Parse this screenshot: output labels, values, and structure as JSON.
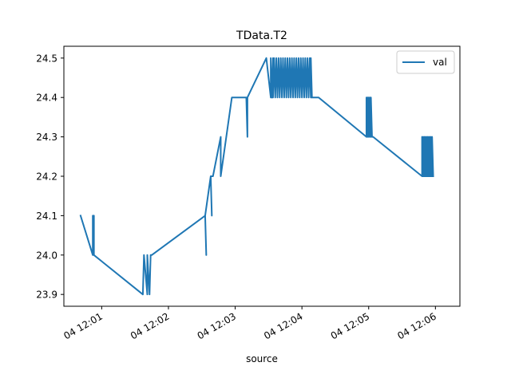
{
  "chart_data": {
    "type": "line",
    "title": "TData.T2",
    "xlabel": "source",
    "ylabel": "",
    "x_type": "time",
    "x_tick_labels": [
      "04 12:01",
      "04 12:02",
      "04 12:03",
      "04 12:04",
      "04 12:05",
      "04 12:06"
    ],
    "y_ticks": [
      23.9,
      24.0,
      24.1,
      24.2,
      24.3,
      24.4,
      24.5
    ],
    "y_tick_labels": [
      "23.9",
      "24.0",
      "24.1",
      "24.2",
      "24.3",
      "24.4",
      "24.5"
    ],
    "xlim": [
      "12:00:26",
      "12:06:22"
    ],
    "ylim": [
      23.87,
      24.53
    ],
    "grid": false,
    "legend": {
      "position": "top-right"
    },
    "series": [
      {
        "name": "val",
        "color": "#1f77b4",
        "x": [
          "12:00:41",
          "12:00:52",
          "12:00:52",
          "12:00:53",
          "12:00:53",
          "12:00:53",
          "12:00:53",
          "12:01:37",
          "12:01:38",
          "12:01:41",
          "12:01:41",
          "12:01:43",
          "12:01:44",
          "12:01:45",
          "12:02:33",
          "12:02:34",
          "12:02:33",
          "12:02:38",
          "12:02:39",
          "12:02:38",
          "12:02:40",
          "12:02:47",
          "12:02:47",
          "12:02:57",
          "12:03:10",
          "12:03:11",
          "12:03:11",
          "12:03:11",
          "12:03:28",
          "12:03:32",
          "12:03:32",
          "12:03:33",
          "12:03:34",
          "12:03:34",
          "12:03:35",
          "12:03:36",
          "12:03:37",
          "12:03:38",
          "12:03:39",
          "12:03:40",
          "12:03:41",
          "12:03:42",
          "12:03:43",
          "12:03:44",
          "12:03:45",
          "12:03:46",
          "12:03:47",
          "12:03:48",
          "12:03:49",
          "12:03:50",
          "12:03:51",
          "12:03:52",
          "12:03:53",
          "12:03:54",
          "12:03:55",
          "12:03:56",
          "12:03:57",
          "12:03:58",
          "12:03:59",
          "12:04:00",
          "12:04:01",
          "12:04:02",
          "12:04:03",
          "12:04:04",
          "12:04:05",
          "12:04:06",
          "12:04:07",
          "12:04:08",
          "12:04:08",
          "12:04:09",
          "12:04:15",
          "12:04:58",
          "12:04:58",
          "12:04:59",
          "12:04:59",
          "12:05:00",
          "12:05:00",
          "12:05:01",
          "12:05:01",
          "12:05:02",
          "12:05:02",
          "12:05:03",
          "12:05:04",
          "12:05:48",
          "12:05:48",
          "12:05:49",
          "12:05:49",
          "12:05:50",
          "12:05:50",
          "12:05:51",
          "12:05:51",
          "12:05:52",
          "12:05:52",
          "12:05:53",
          "12:05:53",
          "12:05:54",
          "12:05:54",
          "12:05:55",
          "12:05:55",
          "12:05:56",
          "12:05:56",
          "12:05:57",
          "12:05:57",
          "12:05:58"
        ],
        "y": [
          24.1,
          24.0,
          24.1,
          24.0,
          24.1,
          24.0,
          24.0,
          23.9,
          24.0,
          23.9,
          24.0,
          23.9,
          24.0,
          24.0,
          24.1,
          24.0,
          24.1,
          24.2,
          24.1,
          24.2,
          24.2,
          24.3,
          24.2,
          24.4,
          24.4,
          24.3,
          24.4,
          24.4,
          24.5,
          24.4,
          24.5,
          24.4,
          24.5,
          24.4,
          24.5,
          24.4,
          24.5,
          24.4,
          24.5,
          24.4,
          24.5,
          24.4,
          24.5,
          24.4,
          24.5,
          24.4,
          24.5,
          24.4,
          24.5,
          24.4,
          24.5,
          24.4,
          24.5,
          24.4,
          24.5,
          24.4,
          24.5,
          24.4,
          24.5,
          24.4,
          24.5,
          24.4,
          24.5,
          24.4,
          24.5,
          24.4,
          24.5,
          24.4,
          24.5,
          24.4,
          24.4,
          24.3,
          24.4,
          24.3,
          24.4,
          24.3,
          24.4,
          24.3,
          24.4,
          24.3,
          24.4,
          24.3,
          24.3,
          24.2,
          24.3,
          24.2,
          24.3,
          24.2,
          24.3,
          24.2,
          24.3,
          24.2,
          24.3,
          24.2,
          24.3,
          24.2,
          24.3,
          24.2,
          24.3,
          24.2,
          24.3,
          24.2,
          24.3,
          24.2
        ]
      }
    ]
  }
}
